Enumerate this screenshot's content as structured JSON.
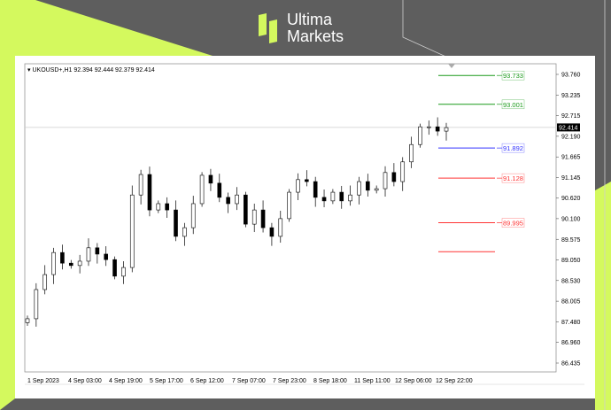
{
  "brand": {
    "line1": "Ultima",
    "line2": "Markets",
    "accent": "#d4f95e"
  },
  "chart_data": {
    "type": "candlestick",
    "symbol_header": "UKOUSD+,H1  92.394 92.444 92.379 92.414",
    "y_ticks": [
      "93.760",
      "93.235",
      "92.715",
      "92.190",
      "91.665",
      "91.145",
      "90.620",
      "90.100",
      "89.575",
      "89.050",
      "88.530",
      "88.005",
      "87.480",
      "86.960",
      "86.435"
    ],
    "ylim": [
      86.435,
      93.76
    ],
    "x_ticks": [
      "1 Sep 2023",
      "4 Sep 03:00",
      "4 Sep 19:00",
      "5 Sep 17:00",
      "6 Sep 12:00",
      "7 Sep 07:00",
      "7 Sep 23:00",
      "8 Sep 18:00",
      "11 Sep 11:00",
      "12 Sep 06:00",
      "12 Sep 22:00"
    ],
    "closes": [
      87.56,
      88.3,
      88.68,
      89.24,
      88.97,
      88.91,
      89.02,
      89.36,
      89.2,
      89.06,
      88.64,
      88.86,
      90.7,
      91.22,
      90.32,
      90.48,
      90.32,
      89.65,
      89.87,
      90.48,
      91.2,
      91.0,
      90.64,
      90.48,
      90.7,
      89.96,
      90.32,
      89.87,
      89.65,
      90.1,
      90.77,
      91.09,
      91.04,
      90.64,
      90.55,
      90.77,
      90.55,
      90.7,
      91.04,
      90.82,
      90.86,
      91.27,
      91.04,
      91.54,
      91.98,
      92.43,
      92.43,
      92.32,
      92.41
    ],
    "current_price": {
      "value": 92.414,
      "label": "92.414"
    },
    "levels": [
      {
        "value": 93.733,
        "label": "93.733",
        "color": "#1a9a1a"
      },
      {
        "value": 93.001,
        "label": "93.001",
        "color": "#1a9a1a"
      },
      {
        "value": 91.892,
        "label": "91.892",
        "color": "#3333ff"
      },
      {
        "value": 91.128,
        "label": "91.128",
        "color": "#ff3333"
      },
      {
        "value": 89.995,
        "label": "89.995",
        "color": "#ff3333"
      },
      {
        "value": 89.26,
        "label": "",
        "color": "#ff3333"
      }
    ]
  }
}
